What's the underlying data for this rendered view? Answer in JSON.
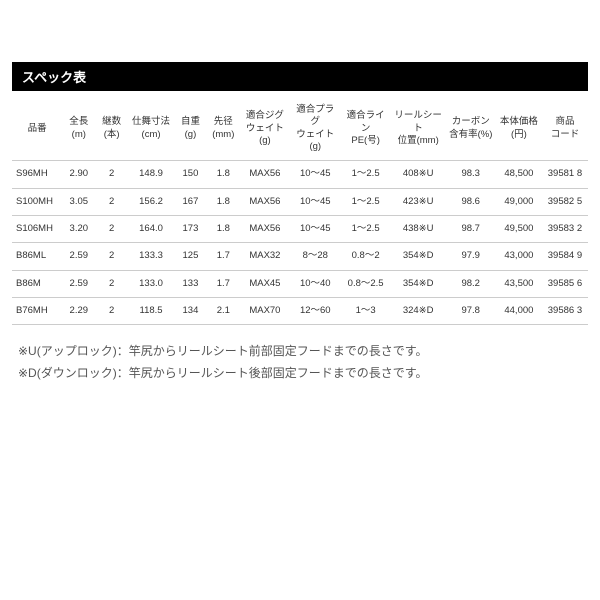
{
  "title": "スペック表",
  "columns": [
    "品番",
    "全長\n(m)",
    "継数\n(本)",
    "仕舞寸法\n(cm)",
    "自重\n(g)",
    "先径\n(mm)",
    "適合ジグ\nウェイト(g)",
    "適合プラグ\nウェイト(g)",
    "適合ライン\nPE(号)",
    "リールシート\n位置(mm)",
    "カーボン\n含有率(%)",
    "本体価格\n(円)",
    "商品\nコード"
  ],
  "rows": [
    [
      "S96MH",
      "2.90",
      "2",
      "148.9",
      "150",
      "1.8",
      "MAX56",
      "10～45",
      "1～2.5",
      "408※U",
      "98.3",
      "48,500",
      "39581 8"
    ],
    [
      "S100MH",
      "3.05",
      "2",
      "156.2",
      "167",
      "1.8",
      "MAX56",
      "10～45",
      "1～2.5",
      "423※U",
      "98.6",
      "49,000",
      "39582 5"
    ],
    [
      "S106MH",
      "3.20",
      "2",
      "164.0",
      "173",
      "1.8",
      "MAX56",
      "10～45",
      "1～2.5",
      "438※U",
      "98.7",
      "49,500",
      "39583 2"
    ],
    [
      "B86ML",
      "2.59",
      "2",
      "133.3",
      "125",
      "1.7",
      "MAX32",
      "8～28",
      "0.8～2",
      "354※D",
      "97.9",
      "43,000",
      "39584 9"
    ],
    [
      "B86M",
      "2.59",
      "2",
      "133.0",
      "133",
      "1.7",
      "MAX45",
      "10～40",
      "0.8～2.5",
      "354※D",
      "98.2",
      "43,500",
      "39585 6"
    ],
    [
      "B76MH",
      "2.29",
      "2",
      "118.5",
      "134",
      "2.1",
      "MAX70",
      "12～60",
      "1～3",
      "324※D",
      "97.8",
      "44,000",
      "39586 3"
    ]
  ],
  "notes": [
    "※U(アップロック)：竿尻からリールシート前部固定フードまでの長さです。",
    "※D(ダウンロック)：竿尻からリールシート後部固定フードまでの長さです。"
  ]
}
